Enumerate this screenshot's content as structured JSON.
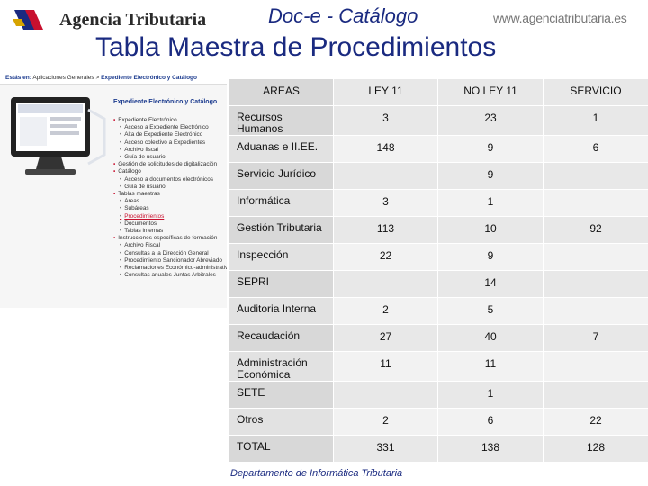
{
  "header": {
    "agency_name": "Agencia Tributaria",
    "app_title": "Doc-e - Catálogo",
    "url": "www.agenciatributaria.es",
    "main_title": "Tabla Maestra de Procedimientos"
  },
  "screenshot": {
    "location_label": "Estás en:",
    "breadcrumb_1": "Aplicaciones Generales",
    "breadcrumb_sep": ">",
    "breadcrumb_2": "Expediente Electrónico y Catálogo",
    "heading": "Expediente Electrónico y Catálogo",
    "items": [
      {
        "level": 1,
        "text": "Expediente Electrónico"
      },
      {
        "level": 2,
        "text": "Acceso a Expediente Electrónico"
      },
      {
        "level": 2,
        "text": "Alta de Expediente Electrónico"
      },
      {
        "level": 2,
        "text": "Acceso colectivo a Expedientes"
      },
      {
        "level": 2,
        "text": "Archivo fiscal"
      },
      {
        "level": 2,
        "text": "Guía de usuario"
      },
      {
        "level": 1,
        "text": "Gestión de solicitudes de digitalización"
      },
      {
        "level": 1,
        "text": "Catálogo"
      },
      {
        "level": 2,
        "text": "Acceso a documentos electrónicos"
      },
      {
        "level": 2,
        "text": "Guía de usuario"
      },
      {
        "level": 1,
        "text": "Tablas maestras"
      },
      {
        "level": 2,
        "text": "Áreas"
      },
      {
        "level": 2,
        "text": "Subáreas"
      },
      {
        "level": 2,
        "text": "Procedimientos",
        "highlight": true
      },
      {
        "level": 2,
        "text": "Documentos"
      },
      {
        "level": 2,
        "text": "Tablas internas"
      },
      {
        "level": 1,
        "text": "Instrucciones específicas de formación"
      },
      {
        "level": 2,
        "text": "Archivo Fiscal"
      },
      {
        "level": 2,
        "text": "Consultas a la Dirección General"
      },
      {
        "level": 2,
        "text": "Procedimiento Sancionador Abreviado"
      },
      {
        "level": 2,
        "text": "Reclamaciones Económico-administrativas"
      },
      {
        "level": 2,
        "text": "Consultas anuales Juntas Arbitrales"
      }
    ]
  },
  "table": {
    "headers": [
      "AREAS",
      "LEY 11",
      "NO LEY 11",
      "SERVICIO"
    ],
    "rows": [
      {
        "area": "Recursos Humanos",
        "ley11": "3",
        "noley11": "23",
        "servicio": "1"
      },
      {
        "area": "Aduanas e II.EE.",
        "ley11": "148",
        "noley11": "9",
        "servicio": "6"
      },
      {
        "area": "Servicio Jurídico",
        "ley11": "",
        "noley11": "9",
        "servicio": ""
      },
      {
        "area": "Informática",
        "ley11": "3",
        "noley11": "1",
        "servicio": ""
      },
      {
        "area": "Gestión Tributaria",
        "ley11": "113",
        "noley11": "10",
        "servicio": "92"
      },
      {
        "area": "Inspección",
        "ley11": "22",
        "noley11": "9",
        "servicio": ""
      },
      {
        "area": "SEPRI",
        "ley11": "",
        "noley11": "14",
        "servicio": ""
      },
      {
        "area": "Auditoria Interna",
        "ley11": "2",
        "noley11": "5",
        "servicio": ""
      },
      {
        "area": "Recaudación",
        "ley11": "27",
        "noley11": "40",
        "servicio": "7"
      },
      {
        "area": "Administración Económica",
        "ley11": "11",
        "noley11": "11",
        "servicio": ""
      },
      {
        "area": "SETE",
        "ley11": "",
        "noley11": "1",
        "servicio": ""
      },
      {
        "area": "Otros",
        "ley11": "2",
        "noley11": "6",
        "servicio": "22"
      },
      {
        "area": "TOTAL",
        "ley11": "331",
        "noley11": "138",
        "servicio": "128"
      }
    ]
  },
  "footer": {
    "text": "Departamento de Informática Tributaria"
  },
  "colors": {
    "title_blue": "#1a2a80",
    "accent_red": "#c8102e"
  }
}
